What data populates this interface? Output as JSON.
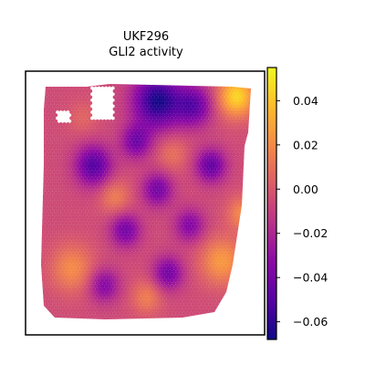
{
  "chart_data": {
    "type": "heatmap",
    "subtype": "spatial-hexbin",
    "title_line1": "UKF296",
    "title_line2": "GLI2 activity",
    "colormap": "plasma",
    "colorbar": {
      "min": -0.068,
      "max": 0.055,
      "ticks": [
        0.04,
        0.02,
        0.0,
        -0.02,
        -0.04,
        -0.06
      ],
      "tick_labels": [
        "0.04",
        "0.02",
        "0.00",
        "−0.02",
        "−0.04",
        "−0.06"
      ]
    },
    "grid": false,
    "legend": "colorbar-right",
    "value_field": {
      "base": -0.005,
      "blobs": [
        {
          "cx": 0.55,
          "cy": 0.08,
          "r": 0.08,
          "v": -0.06
        },
        {
          "cx": 0.72,
          "cy": 0.1,
          "r": 0.06,
          "v": -0.04
        },
        {
          "cx": 0.25,
          "cy": 0.35,
          "r": 0.06,
          "v": -0.045
        },
        {
          "cx": 0.45,
          "cy": 0.25,
          "r": 0.05,
          "v": -0.035
        },
        {
          "cx": 0.8,
          "cy": 0.35,
          "r": 0.05,
          "v": -0.04
        },
        {
          "cx": 0.55,
          "cy": 0.45,
          "r": 0.05,
          "v": -0.035
        },
        {
          "cx": 0.4,
          "cy": 0.62,
          "r": 0.05,
          "v": -0.035
        },
        {
          "cx": 0.7,
          "cy": 0.6,
          "r": 0.05,
          "v": -0.03
        },
        {
          "cx": 0.3,
          "cy": 0.85,
          "r": 0.05,
          "v": -0.03
        },
        {
          "cx": 0.6,
          "cy": 0.8,
          "r": 0.05,
          "v": -0.035
        },
        {
          "cx": 0.92,
          "cy": 0.06,
          "r": 0.06,
          "v": 0.05
        },
        {
          "cx": 0.15,
          "cy": 0.78,
          "r": 0.07,
          "v": 0.025
        },
        {
          "cx": 0.35,
          "cy": 0.48,
          "r": 0.05,
          "v": 0.02
        },
        {
          "cx": 0.62,
          "cy": 0.3,
          "r": 0.05,
          "v": 0.015
        },
        {
          "cx": 0.85,
          "cy": 0.75,
          "r": 0.07,
          "v": 0.03
        },
        {
          "cx": 0.5,
          "cy": 0.9,
          "r": 0.05,
          "v": 0.02
        },
        {
          "cx": 0.2,
          "cy": 0.15,
          "r": 0.05,
          "v": 0.01
        },
        {
          "cx": 0.95,
          "cy": 0.55,
          "r": 0.05,
          "v": 0.025
        }
      ]
    }
  }
}
